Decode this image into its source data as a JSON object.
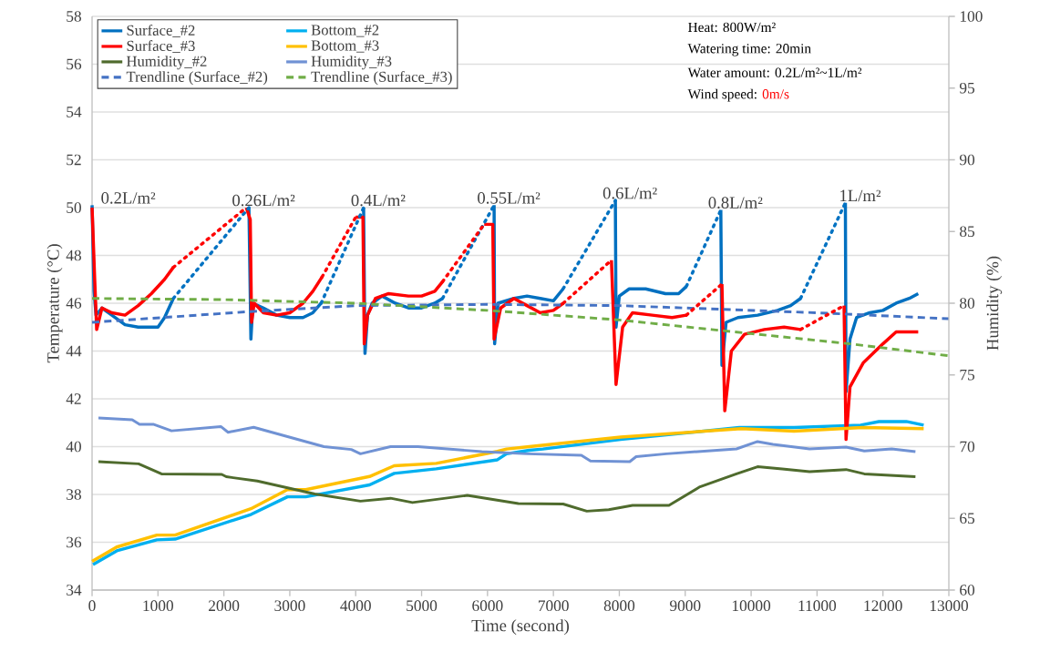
{
  "chart_data": {
    "type": "line",
    "xlabel": "Time (second)",
    "ylabel": "Temperature (°C)",
    "y2label": "Humidity (%)",
    "xlim": [
      0,
      13000
    ],
    "xticks": [
      0,
      1000,
      2000,
      3000,
      4000,
      5000,
      6000,
      7000,
      8000,
      9000,
      10000,
      11000,
      12000,
      13000
    ],
    "ylim": [
      34,
      58
    ],
    "yticks": [
      34,
      36,
      38,
      40,
      42,
      44,
      46,
      48,
      50,
      52,
      54,
      56,
      58
    ],
    "y2lim": [
      60,
      100
    ],
    "y2ticks": [
      60,
      65,
      70,
      75,
      80,
      85,
      90,
      95,
      100
    ],
    "grid": "y",
    "legend": "top left",
    "series": [
      {
        "name": "Surface_#2",
        "color": "#0070c0",
        "x": [
          0,
          30,
          60,
          150,
          300,
          500,
          700,
          1000,
          1100,
          1233,
          1700,
          2380,
          2410,
          2440,
          2600,
          2800,
          3000,
          3200,
          3350,
          3476,
          3700,
          4120,
          4141,
          4180,
          4250,
          4400,
          4600,
          4800,
          5000,
          5200,
          5318,
          5600,
          6100,
          6108,
          6160,
          6400,
          6600,
          6800,
          7000,
          7147,
          7500,
          7940,
          7950,
          8000,
          8150,
          8400,
          8700,
          8900,
          9017,
          9300,
          9540,
          9557,
          9620,
          9800,
          10100,
          10400,
          10600,
          10750,
          11100,
          11430,
          11440,
          11500,
          11600,
          11800,
          12000,
          12200,
          12400,
          12535
        ],
        "values": [
          50.1,
          46.5,
          45.5,
          45.8,
          45.5,
          45.1,
          45.0,
          45.0,
          45.4,
          46.2,
          null,
          50.0,
          44.5,
          46.0,
          45.8,
          45.5,
          45.4,
          45.4,
          45.6,
          46.0,
          null,
          50.0,
          43.9,
          45.5,
          46.0,
          46.3,
          46.0,
          45.8,
          45.8,
          46.0,
          46.2,
          null,
          50.1,
          44.3,
          46.0,
          46.2,
          46.3,
          46.2,
          46.1,
          46.6,
          null,
          50.3,
          45.0,
          46.3,
          46.6,
          46.6,
          46.4,
          46.4,
          46.7,
          null,
          49.9,
          43.4,
          45.2,
          45.4,
          45.5,
          45.7,
          45.9,
          46.2,
          null,
          50.2,
          42.3,
          44.5,
          45.4,
          45.6,
          45.7,
          46.0,
          46.2,
          46.4
        ]
      },
      {
        "name": "Bottom_#2",
        "color": "#00b0f0",
        "x": [
          14,
          374,
          983,
          1260,
          2410,
          2964,
          3241,
          4211,
          4584,
          5222,
          6150,
          6288,
          6634,
          6842,
          8019,
          9820,
          10651,
          11662,
          11939,
          12355,
          12618
        ],
        "values": [
          35.07,
          35.64,
          36.1,
          36.13,
          37.16,
          37.9,
          37.9,
          38.4,
          38.88,
          39.07,
          39.45,
          39.7,
          39.85,
          39.9,
          40.3,
          40.8,
          40.8,
          40.9,
          41.05,
          41.05,
          40.9
        ]
      },
      {
        "name": "Surface_#3",
        "color": "#ff0000",
        "x": [
          0,
          40,
          70,
          150,
          300,
          500,
          700,
          900,
          1100,
          1233,
          1700,
          2340,
          2400,
          2420,
          2460,
          2600,
          2800,
          3000,
          3200,
          3350,
          3490,
          3700,
          4000,
          4110,
          4130,
          4180,
          4300,
          4500,
          4800,
          5000,
          5200,
          5318,
          5600,
          5950,
          6080,
          6100,
          6200,
          6400,
          6600,
          6800,
          7000,
          7150,
          7500,
          7880,
          7950,
          8050,
          8200,
          8500,
          8800,
          9017,
          9300,
          9557,
          9600,
          9700,
          9900,
          10200,
          10500,
          10750,
          11100,
          11410,
          11440,
          11500,
          11700,
          12000,
          12200,
          12535
        ],
        "values": [
          50.0,
          47.0,
          44.9,
          45.8,
          45.6,
          45.5,
          45.9,
          46.4,
          47.0,
          47.5,
          null,
          50.0,
          49.5,
          45.2,
          46.0,
          45.6,
          45.5,
          45.6,
          46.0,
          46.5,
          47.1,
          null,
          49.6,
          49.6,
          44.3,
          45.5,
          46.2,
          46.4,
          46.3,
          46.3,
          46.5,
          46.9,
          null,
          49.3,
          49.3,
          44.5,
          45.8,
          46.2,
          45.9,
          45.6,
          45.7,
          46.0,
          null,
          47.8,
          42.6,
          45.0,
          45.6,
          45.5,
          45.4,
          45.5,
          null,
          46.8,
          41.5,
          44.0,
          44.7,
          44.9,
          45.0,
          44.9,
          null,
          45.9,
          40.3,
          42.5,
          43.5,
          44.3,
          44.8,
          44.8
        ]
      },
      {
        "name": "Bottom_#3",
        "color": "#ffc000",
        "x": [
          0,
          374,
          983,
          1260,
          2410,
          2964,
          3241,
          4211,
          4584,
          5222,
          6150,
          6288,
          6634,
          8019,
          9850,
          10651,
          11690,
          12618
        ],
        "values": [
          35.2,
          35.8,
          36.3,
          36.3,
          37.4,
          38.2,
          38.2,
          38.75,
          39.2,
          39.3,
          39.8,
          39.9,
          40.0,
          40.4,
          40.75,
          40.65,
          40.8,
          40.75
        ]
      },
      {
        "name": "Humidity_#2",
        "color": "#4f6b2d",
        "axis": "y2",
        "x": [
          97,
          706,
          1053,
          1967,
          2036,
          2507,
          3380,
          4072,
          4529,
          4861,
          5693,
          6468,
          7147,
          7507,
          7839,
          8200,
          8753,
          9224,
          9778,
          10097,
          10471,
          10886,
          11440,
          11717,
          12493
        ],
        "values": [
          68.95,
          68.8,
          68.1,
          68.06,
          67.9,
          67.6,
          66.7,
          66.2,
          66.4,
          66.1,
          66.6,
          66.03,
          66.0,
          65.5,
          65.6,
          65.9,
          65.9,
          67.2,
          68.1,
          68.6,
          68.44,
          68.25,
          68.4,
          68.1,
          67.9
        ]
      },
      {
        "name": "Humidity_#3",
        "color": "#7092d4",
        "axis": "y2",
        "x": [
          97,
          609,
          720,
          928,
          1205,
          1953,
          2064,
          2452,
          3518,
          3933,
          4072,
          4529,
          4945,
          5914,
          6607,
          7424,
          7562,
          8158,
          8255,
          8712,
          9778,
          10097,
          10332,
          10886,
          11440,
          11717,
          12133,
          12493
        ],
        "values": [
          72.0,
          71.87,
          71.56,
          71.56,
          71.1,
          71.4,
          71.0,
          71.35,
          70.0,
          69.8,
          69.5,
          70.0,
          70.0,
          69.65,
          69.5,
          69.4,
          69.0,
          68.95,
          69.3,
          69.5,
          69.84,
          70.35,
          70.16,
          69.84,
          69.97,
          69.7,
          69.84,
          69.65
        ]
      },
      {
        "name": "Trendline (Surface_#2)",
        "color": "#4472c4",
        "line_style": "dashed",
        "x": [
          0,
          2400,
          4000,
          6000,
          8000,
          11000,
          13000
        ],
        "values": [
          45.2,
          45.65,
          45.9,
          45.95,
          45.9,
          45.6,
          45.35
        ]
      },
      {
        "name": "Trendline (Surface_#3)",
        "color": "#70ad47",
        "line_style": "dashed",
        "x": [
          0,
          2000,
          4000,
          6000,
          8000,
          9400,
          11500,
          13000
        ],
        "values": [
          46.2,
          46.15,
          46.0,
          45.7,
          45.3,
          44.9,
          44.3,
          43.8
        ]
      },
      {
        "color": "#0172c2",
        "line_style": "dotted",
        "x": [
          1233,
          2380,
          2900,
          3476,
          4120,
          4600,
          5318,
          6100,
          6600,
          7147,
          7940,
          8500,
          9017,
          9540,
          10100,
          10750,
          11430
        ],
        "values": [
          46.2,
          50.0,
          null,
          46.0,
          50.0,
          null,
          46.2,
          50.1,
          null,
          46.6,
          50.3,
          null,
          46.7,
          49.9,
          null,
          46.2,
          50.2
        ]
      },
      {
        "color": "#fe0202",
        "line_style": "dotted",
        "x": [
          1233,
          2340,
          2900,
          3490,
          4000,
          4600,
          5318,
          5950,
          6600,
          7150,
          7880,
          8500,
          9017,
          9557,
          10100,
          10750,
          11410
        ],
        "values": [
          47.5,
          50.0,
          null,
          47.1,
          49.6,
          null,
          46.9,
          49.3,
          null,
          46.0,
          47.8,
          null,
          45.5,
          46.8,
          null,
          44.9,
          45.9
        ]
      }
    ],
    "annotations": [
      {
        "text": "0.2L/m²",
        "x": 0,
        "y": 50.1
      },
      {
        "text": "0.26L/m²",
        "x": 2380,
        "y": 50.0
      },
      {
        "text": "0.4L/m²",
        "x": 4120,
        "y": 50.0
      },
      {
        "text": "0.55L/m²",
        "x": 6100,
        "y": 50.1
      },
      {
        "text": "0.6L/m²",
        "x": 7940,
        "y": 50.3
      },
      {
        "text": "0.8L/m²",
        "x": 9540,
        "y": 49.9
      },
      {
        "text": "1L/m²",
        "x": 11430,
        "y": 50.2
      },
      "Heat: 800W/m²",
      "Watering time: 20min",
      "Water amount: 0.2L/m²~1L/m²",
      "Wind speed: ",
      "0m/s"
    ]
  }
}
